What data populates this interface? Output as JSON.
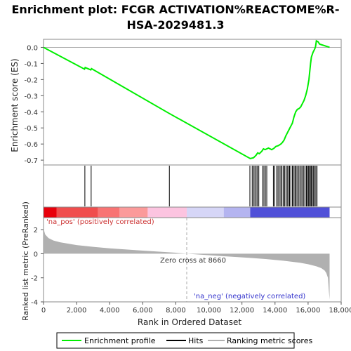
{
  "chart_data": {
    "type": "line",
    "title_line1": "Enrichment plot: FCGR ACTIVATION%REACTOME%R-",
    "title_line2": "HSA-2029481.3",
    "es_panel": {
      "ylabel": "Enrichment score (ES)",
      "ylim": [
        -0.73,
        0.05
      ],
      "yticks": [
        0.0,
        -0.1,
        -0.2,
        -0.3,
        -0.4,
        -0.5,
        -0.6,
        -0.7
      ],
      "ytick_labels": [
        "0.0",
        "-0.1",
        "-0.2",
        "-0.3",
        "-0.4",
        "-0.5",
        "-0.6",
        "-0.7"
      ],
      "series": {
        "name": "Enrichment profile",
        "color": "#00ee00",
        "x": [
          0,
          2480,
          2520,
          2860,
          2900,
          7600,
          12500,
          12700,
          12850,
          12950,
          13050,
          13200,
          13300,
          13400,
          13600,
          13800,
          13950,
          14050,
          14200,
          14350,
          14450,
          14550,
          14650,
          14750,
          14850,
          14950,
          15050,
          15150,
          15250,
          15350,
          15450,
          15550,
          15650,
          15750,
          15850,
          15950,
          16050,
          16100,
          16150,
          16200,
          16300,
          16400,
          16450,
          16500,
          16600,
          16700,
          17300
        ],
        "y": [
          0.0,
          -0.135,
          -0.125,
          -0.14,
          -0.132,
          -0.41,
          -0.69,
          -0.685,
          -0.67,
          -0.655,
          -0.66,
          -0.645,
          -0.63,
          -0.635,
          -0.625,
          -0.635,
          -0.625,
          -0.615,
          -0.61,
          -0.6,
          -0.59,
          -0.575,
          -0.55,
          -0.53,
          -0.51,
          -0.49,
          -0.47,
          -0.43,
          -0.4,
          -0.385,
          -0.38,
          -0.37,
          -0.35,
          -0.33,
          -0.3,
          -0.26,
          -0.2,
          -0.15,
          -0.1,
          -0.06,
          -0.03,
          -0.01,
          0.005,
          0.04,
          0.035,
          0.02,
          0.0
        ]
      }
    },
    "hits": {
      "name": "Hits",
      "positions": [
        2500,
        2880,
        7610,
        12480,
        12620,
        12700,
        12780,
        12860,
        12940,
        13020,
        13250,
        13330,
        13420,
        13500,
        13900,
        13980,
        14100,
        14180,
        14260,
        14350,
        14420,
        14500,
        14580,
        14660,
        14740,
        14820,
        14880,
        14960,
        15050,
        15120,
        15200,
        15260,
        15330,
        15420,
        15500,
        15580,
        15660,
        15740,
        15820,
        15900,
        15960,
        16020,
        16080,
        16140,
        16200,
        16260,
        16330,
        16400,
        16470,
        16540
      ]
    },
    "rank_bar": {
      "label_pos": "'na_pos' (positively correlated)",
      "label_neg": "'na_neg' (negatively correlated)",
      "pos_color": "#cc3333",
      "neg_color": "#3333cc",
      "segments": [
        {
          "start": 0,
          "end": 800,
          "color": "#e8000b"
        },
        {
          "start": 800,
          "end": 3300,
          "color": "#f04d4d"
        },
        {
          "start": 3300,
          "end": 4600,
          "color": "#f87373"
        },
        {
          "start": 4600,
          "end": 6300,
          "color": "#fb9a9a"
        },
        {
          "start": 6300,
          "end": 8660,
          "color": "#fcc4e0"
        },
        {
          "start": 8660,
          "end": 10900,
          "color": "#d6d6f7"
        },
        {
          "start": 10900,
          "end": 12500,
          "color": "#b4b4f0"
        },
        {
          "start": 12500,
          "end": 17300,
          "color": "#5050d8"
        }
      ]
    },
    "metric_panel": {
      "ylabel": "Ranked list metric (PreRanked)",
      "ylim": [
        -4,
        3
      ],
      "yticks": [
        2,
        0,
        -2,
        -4
      ],
      "ytick_labels": [
        "2",
        "0",
        "-2",
        "-4"
      ],
      "fill_color": "#b0b0b0",
      "metric_x": [
        0,
        100,
        300,
        600,
        1000,
        2000,
        3000,
        4000,
        5000,
        6000,
        7000,
        8000,
        8660,
        9500,
        10500,
        11500,
        12500,
        13500,
        14500,
        15500,
        16000,
        16500,
        16800,
        17000,
        17100,
        17200,
        17250,
        17300
      ],
      "metric_y": [
        2.1,
        1.6,
        1.3,
        1.1,
        0.95,
        0.72,
        0.57,
        0.45,
        0.35,
        0.26,
        0.17,
        0.08,
        0.0,
        -0.08,
        -0.17,
        -0.26,
        -0.35,
        -0.45,
        -0.58,
        -0.75,
        -0.87,
        -1.05,
        -1.2,
        -1.4,
        -1.6,
        -2.0,
        -3.0,
        -3.8
      ],
      "zero_cross_label": "Zero cross at 8660",
      "zero_cross": 8660
    },
    "xaxis": {
      "xlabel": "Rank in Ordered Dataset",
      "xlim": [
        0,
        18000
      ],
      "xticks": [
        0,
        2000,
        4000,
        6000,
        8000,
        10000,
        12000,
        14000,
        16000,
        18000
      ],
      "xtick_labels": [
        "0",
        "2,000",
        "4,000",
        "6,000",
        "8,000",
        "10,000",
        "12,000",
        "14,000",
        "16,000",
        "18,000"
      ]
    },
    "legend": [
      {
        "label": "Enrichment profile",
        "color": "#00ee00"
      },
      {
        "label": "Hits",
        "color": "#000000"
      },
      {
        "label": "Ranking metric scores",
        "color": "#b0b0b0"
      }
    ]
  }
}
